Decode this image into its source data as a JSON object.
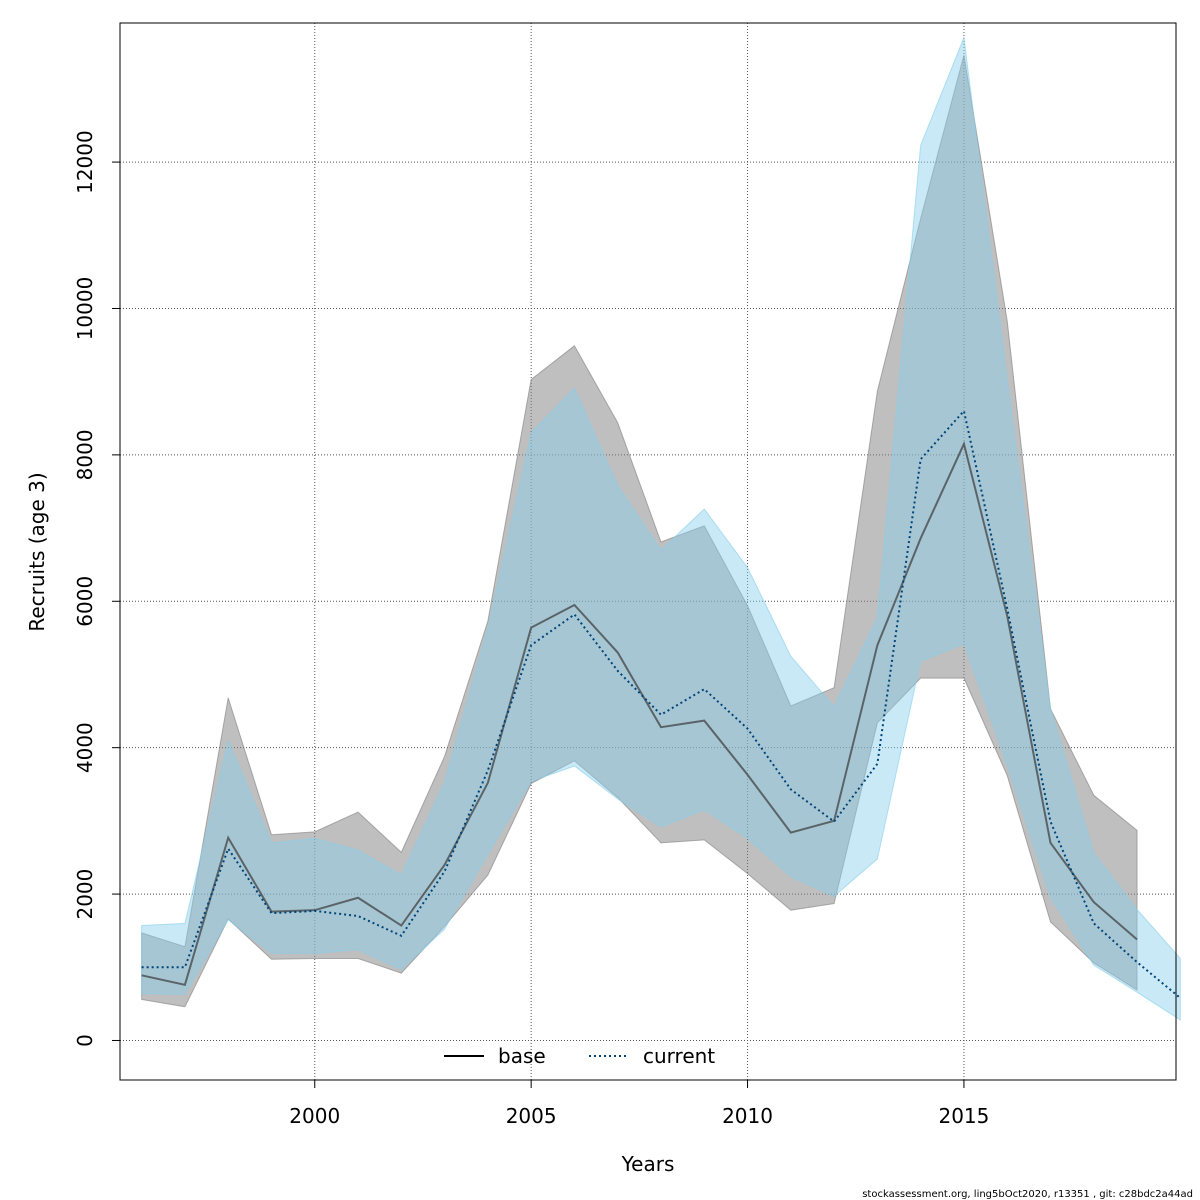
{
  "chart_data": {
    "type": "line",
    "xlabel": "Years",
    "ylabel": "Recruits (age 3)",
    "xlim": [
      1995.5,
      2019.9
    ],
    "ylim": [
      -540,
      13900
    ],
    "x_ticks": [
      2000,
      2005,
      2010,
      2015
    ],
    "y_ticks": [
      0,
      2000,
      4000,
      6000,
      8000,
      10000,
      12000
    ],
    "grid": true,
    "legend_position": "bottom-center",
    "series": [
      {
        "name": "base",
        "line_color": "#3a3a3a",
        "line_style": "solid",
        "band_color": "#7f7f7f",
        "x": [
          1996,
          1997,
          1998,
          1999,
          2000,
          2001,
          2002,
          2003,
          2004,
          2005,
          2006,
          2007,
          2008,
          2009,
          2010,
          2011,
          2012,
          2013,
          2014,
          2015,
          2016,
          2017,
          2018,
          2019
        ],
        "values": [
          890,
          760,
          2770,
          1760,
          1780,
          1950,
          1570,
          2400,
          3520,
          5640,
          5950,
          5300,
          4280,
          4370,
          3630,
          2840,
          3000,
          5400,
          6860,
          8150,
          5800,
          2700,
          1890,
          1380
        ],
        "lower": [
          560,
          460,
          1660,
          1110,
          1120,
          1120,
          920,
          1560,
          2260,
          3510,
          3820,
          3320,
          2700,
          2740,
          2280,
          1780,
          1870,
          4340,
          4950,
          4950,
          3620,
          1620,
          1060,
          690
        ],
        "upper": [
          1470,
          1280,
          4680,
          2810,
          2850,
          3120,
          2570,
          3880,
          5730,
          9030,
          9490,
          8440,
          6810,
          7030,
          5940,
          4570,
          4820,
          8870,
          11230,
          13460,
          9830,
          4530,
          3350,
          2870
        ]
      },
      {
        "name": "current",
        "line_color": "#00447a",
        "line_style": "dotted",
        "band_color": "#87ceeb",
        "x": [
          1996,
          1997,
          1998,
          1999,
          2000,
          2001,
          2002,
          2003,
          2004,
          2005,
          2006,
          2007,
          2008,
          2009,
          2010,
          2011,
          2012,
          2013,
          2014,
          2015,
          2016,
          2017,
          2018,
          2019,
          2020
        ],
        "values": [
          1000,
          1000,
          2620,
          1740,
          1770,
          1700,
          1430,
          2310,
          3690,
          5400,
          5820,
          5050,
          4450,
          4800,
          4260,
          3430,
          2990,
          3780,
          7940,
          8600,
          5900,
          2990,
          1600,
          1070,
          580
        ],
        "lower": [
          640,
          630,
          1650,
          1190,
          1190,
          1240,
          970,
          1520,
          2550,
          3540,
          3750,
          3300,
          2920,
          3150,
          2760,
          2240,
          1970,
          2480,
          5180,
          5420,
          3770,
          1960,
          1030,
          660,
          280
        ],
        "upper": [
          1570,
          1600,
          4100,
          2700,
          2760,
          2600,
          2260,
          3530,
          5640,
          8300,
          8910,
          7580,
          6700,
          7260,
          6460,
          5250,
          4560,
          5780,
          12230,
          13700,
          9020,
          4540,
          2560,
          1790,
          1120
        ]
      }
    ]
  },
  "footer": "stockassessment.org, ling5bOct2020, r13351 , git: c28bdc2a44ad"
}
